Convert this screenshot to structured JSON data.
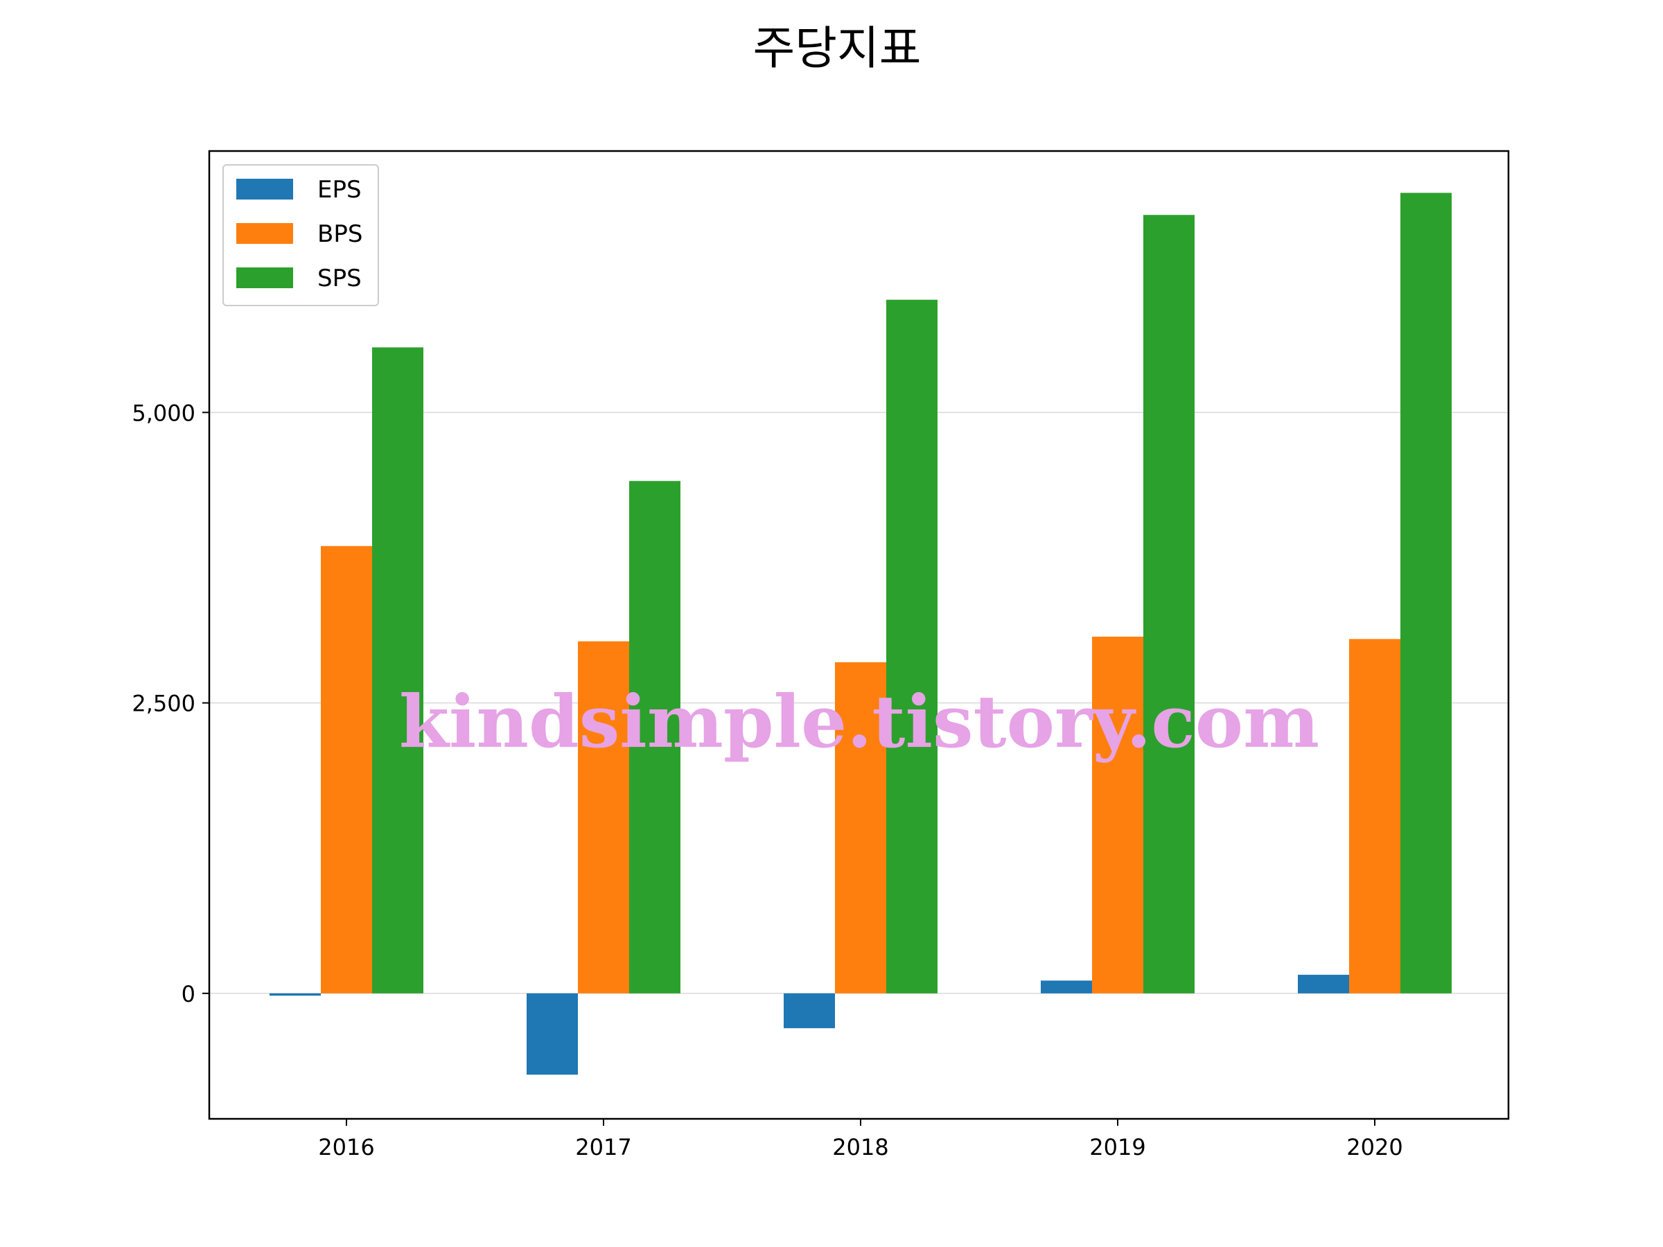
{
  "chart_data": {
    "type": "bar",
    "title": "주당지표",
    "xlabel": "",
    "ylabel": "",
    "categories": [
      "2016",
      "2017",
      "2018",
      "2019",
      "2020"
    ],
    "series": [
      {
        "name": "EPS",
        "color": "#1f77b4",
        "values": [
          -20,
          -700,
          -300,
          110,
          160
        ]
      },
      {
        "name": "BPS",
        "color": "#ff7f0e",
        "values": [
          3850,
          3030,
          2850,
          3070,
          3050
        ]
      },
      {
        "name": "SPS",
        "color": "#2ca02c",
        "values": [
          5560,
          4410,
          5970,
          6700,
          6890
        ]
      }
    ],
    "ylim": [
      -1080,
      7250
    ],
    "yticks": [
      0,
      2500,
      5000
    ],
    "ytick_labels": [
      "0",
      "2,500",
      "5,000"
    ],
    "grid": "horizontal",
    "legend_position": "top-left",
    "watermark": "kindsimple.tistory.com"
  }
}
